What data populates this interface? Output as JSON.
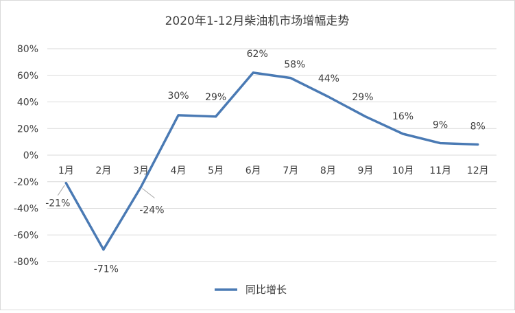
{
  "chart_data": {
    "type": "line",
    "title": "2020年1-12月柴油机市场增幅走势",
    "categories": [
      "1月",
      "2月",
      "3月",
      "4月",
      "5月",
      "6月",
      "7月",
      "8月",
      "9月",
      "10月",
      "11月",
      "12月"
    ],
    "series": [
      {
        "name": "同比增长",
        "values": [
          -21,
          -71,
          -24,
          30,
          29,
          62,
          58,
          44,
          29,
          16,
          9,
          8
        ],
        "data_labels": [
          "-21%",
          "-71%",
          "-24%",
          "30%",
          "29%",
          "62%",
          "58%",
          "44%",
          "29%",
          "16%",
          "9%",
          "8%"
        ]
      }
    ],
    "y_ticks": [
      "80%",
      "60%",
      "40%",
      "20%",
      "0%",
      "-20%",
      "-40%",
      "-60%",
      "-80%"
    ],
    "ylim": [
      -80,
      80
    ],
    "grid": true,
    "legend_position": "bottom",
    "colors": {
      "line": "#4a7ab4",
      "grid": "#d9d9d9",
      "text": "#404040",
      "leader": "#a6a6a6"
    }
  }
}
